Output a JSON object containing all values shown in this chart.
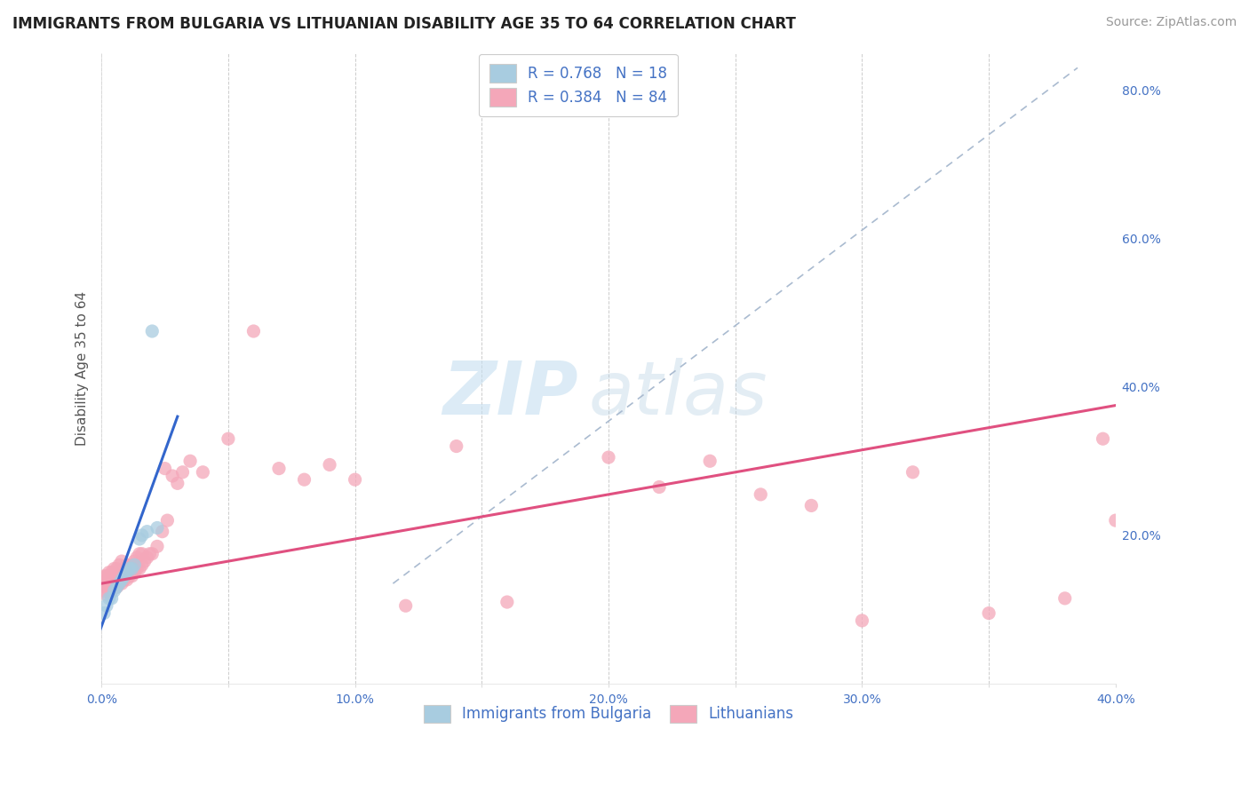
{
  "title": "IMMIGRANTS FROM BULGARIA VS LITHUANIAN DISABILITY AGE 35 TO 64 CORRELATION CHART",
  "source": "Source: ZipAtlas.com",
  "ylabel": "Disability Age 35 to 64",
  "xlim": [
    0.0,
    0.4
  ],
  "ylim": [
    0.0,
    0.85
  ],
  "xtick_labels": [
    "0.0%",
    "",
    "10.0%",
    "",
    "20.0%",
    "",
    "30.0%",
    "",
    "40.0%"
  ],
  "xtick_vals": [
    0.0,
    0.05,
    0.1,
    0.15,
    0.2,
    0.25,
    0.3,
    0.35,
    0.4
  ],
  "ytick_labels_right": [
    "20.0%",
    "40.0%",
    "60.0%",
    "80.0%"
  ],
  "ytick_vals_right": [
    0.2,
    0.4,
    0.6,
    0.8
  ],
  "legend1_label": "R = 0.768   N = 18",
  "legend2_label": "R = 0.384   N = 84",
  "blue_color": "#a8cce0",
  "pink_color": "#f4a7b9",
  "blue_line_color": "#3366cc",
  "pink_line_color": "#e05080",
  "dashed_line_color": "#aabbd0",
  "bg_color": "#ffffff",
  "grid_color": "#cccccc",
  "blue_scatter_x": [
    0.001,
    0.002,
    0.003,
    0.004,
    0.005,
    0.006,
    0.007,
    0.008,
    0.009,
    0.01,
    0.011,
    0.012,
    0.013,
    0.015,
    0.016,
    0.018,
    0.02,
    0.022
  ],
  "blue_scatter_y": [
    0.095,
    0.105,
    0.115,
    0.115,
    0.125,
    0.13,
    0.135,
    0.14,
    0.145,
    0.15,
    0.155,
    0.155,
    0.16,
    0.195,
    0.2,
    0.205,
    0.475,
    0.21
  ],
  "blue_line_x0": -0.005,
  "blue_line_x1": 0.03,
  "blue_line_y0": 0.03,
  "blue_line_y1": 0.36,
  "pink_line_x0": 0.0,
  "pink_line_x1": 0.4,
  "pink_line_y0": 0.135,
  "pink_line_y1": 0.375,
  "dash_line_x0": 0.115,
  "dash_line_x1": 0.385,
  "dash_line_y0": 0.135,
  "dash_line_y1": 0.83,
  "pink_scatter_x": [
    0.001,
    0.001,
    0.001,
    0.002,
    0.002,
    0.002,
    0.002,
    0.003,
    0.003,
    0.003,
    0.003,
    0.003,
    0.004,
    0.004,
    0.004,
    0.004,
    0.004,
    0.005,
    0.005,
    0.005,
    0.005,
    0.006,
    0.006,
    0.006,
    0.006,
    0.007,
    0.007,
    0.007,
    0.007,
    0.008,
    0.008,
    0.008,
    0.008,
    0.009,
    0.009,
    0.009,
    0.01,
    0.01,
    0.01,
    0.011,
    0.011,
    0.012,
    0.012,
    0.013,
    0.013,
    0.014,
    0.014,
    0.015,
    0.015,
    0.016,
    0.016,
    0.017,
    0.018,
    0.019,
    0.02,
    0.022,
    0.024,
    0.025,
    0.026,
    0.028,
    0.03,
    0.032,
    0.035,
    0.04,
    0.05,
    0.06,
    0.07,
    0.08,
    0.09,
    0.1,
    0.12,
    0.14,
    0.16,
    0.2,
    0.22,
    0.24,
    0.26,
    0.28,
    0.3,
    0.32,
    0.35,
    0.38,
    0.395,
    0.4
  ],
  "pink_scatter_y": [
    0.125,
    0.135,
    0.145,
    0.12,
    0.13,
    0.14,
    0.145,
    0.125,
    0.13,
    0.14,
    0.145,
    0.15,
    0.125,
    0.13,
    0.14,
    0.145,
    0.15,
    0.13,
    0.14,
    0.145,
    0.155,
    0.13,
    0.14,
    0.145,
    0.155,
    0.135,
    0.14,
    0.15,
    0.16,
    0.135,
    0.14,
    0.15,
    0.165,
    0.14,
    0.145,
    0.155,
    0.14,
    0.15,
    0.16,
    0.145,
    0.155,
    0.145,
    0.16,
    0.15,
    0.165,
    0.155,
    0.17,
    0.155,
    0.175,
    0.16,
    0.175,
    0.165,
    0.17,
    0.175,
    0.175,
    0.185,
    0.205,
    0.29,
    0.22,
    0.28,
    0.27,
    0.285,
    0.3,
    0.285,
    0.33,
    0.475,
    0.29,
    0.275,
    0.295,
    0.275,
    0.105,
    0.32,
    0.11,
    0.305,
    0.265,
    0.3,
    0.255,
    0.24,
    0.085,
    0.285,
    0.095,
    0.115,
    0.33,
    0.22
  ],
  "title_fontsize": 12,
  "axis_label_fontsize": 11,
  "tick_fontsize": 10,
  "legend_fontsize": 12,
  "source_fontsize": 10
}
